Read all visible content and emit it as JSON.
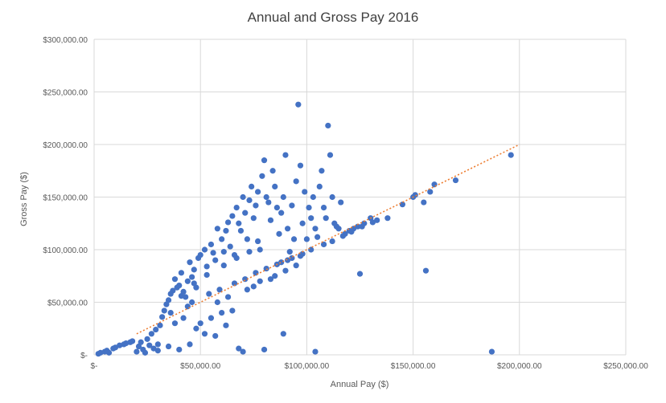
{
  "chart_data": {
    "type": "scatter",
    "title": "Annual and Gross Pay 2016",
    "xlabel": "Annual Pay ($)",
    "ylabel": "Gross Pay ($)",
    "xlim": [
      0,
      250000
    ],
    "ylim": [
      0,
      300000
    ],
    "x_ticks": [
      0,
      50000,
      100000,
      150000,
      200000,
      250000
    ],
    "x_tick_labels": [
      "$-",
      "$50,000.00",
      "$100,000.00",
      "$150,000.00",
      "$200,000.00",
      "$250,000.00"
    ],
    "y_ticks": [
      0,
      50000,
      100000,
      150000,
      200000,
      250000,
      300000
    ],
    "y_tick_labels": [
      "$-",
      "$50,000.00",
      "$100,000.00",
      "$150,000.00",
      "$200,000.00",
      "$250,000.00",
      "$300,000.00"
    ],
    "grid": true,
    "legend": "none",
    "point_color": "#4472C4",
    "trendline": {
      "type": "linear",
      "color": "#ED7D31",
      "style": "dotted",
      "x": [
        20000,
        200000
      ],
      "y": [
        20000,
        200000
      ]
    },
    "points": [
      [
        2000,
        1000
      ],
      [
        3000,
        2000
      ],
      [
        5000,
        3000
      ],
      [
        6000,
        4000
      ],
      [
        7000,
        2000
      ],
      [
        9000,
        6000
      ],
      [
        10000,
        7000
      ],
      [
        12000,
        9000
      ],
      [
        14000,
        10000
      ],
      [
        15000,
        11000
      ],
      [
        17000,
        12000
      ],
      [
        18000,
        13000
      ],
      [
        20000,
        3000
      ],
      [
        21000,
        8000
      ],
      [
        22000,
        12000
      ],
      [
        23000,
        5000
      ],
      [
        24000,
        2000
      ],
      [
        25000,
        15000
      ],
      [
        26000,
        9000
      ],
      [
        27000,
        20000
      ],
      [
        28000,
        6000
      ],
      [
        29000,
        24000
      ],
      [
        30000,
        10000
      ],
      [
        31000,
        28000
      ],
      [
        32000,
        36000
      ],
      [
        33000,
        42000
      ],
      [
        34000,
        48000
      ],
      [
        35000,
        52000
      ],
      [
        36000,
        58000
      ],
      [
        37000,
        61000
      ],
      [
        38000,
        72000
      ],
      [
        39000,
        64000
      ],
      [
        40000,
        66000
      ],
      [
        41000,
        78000
      ],
      [
        42000,
        60000
      ],
      [
        43000,
        55000
      ],
      [
        44000,
        70000
      ],
      [
        45000,
        88000
      ],
      [
        46000,
        74000
      ],
      [
        47000,
        81000
      ],
      [
        48000,
        64000
      ],
      [
        49000,
        92000
      ],
      [
        50000,
        95000
      ],
      [
        52000,
        100000
      ],
      [
        53000,
        84000
      ],
      [
        55000,
        105000
      ],
      [
        56000,
        97000
      ],
      [
        57000,
        90000
      ],
      [
        58000,
        120000
      ],
      [
        60000,
        110000
      ],
      [
        61000,
        98000
      ],
      [
        62000,
        118000
      ],
      [
        63000,
        126000
      ],
      [
        64000,
        103000
      ],
      [
        65000,
        132000
      ],
      [
        66000,
        95000
      ],
      [
        67000,
        140000
      ],
      [
        68000,
        125000
      ],
      [
        69000,
        118000
      ],
      [
        70000,
        150000
      ],
      [
        71000,
        135000
      ],
      [
        72000,
        110000
      ],
      [
        73000,
        147000
      ],
      [
        74000,
        160000
      ],
      [
        75000,
        130000
      ],
      [
        76000,
        142000
      ],
      [
        77000,
        155000
      ],
      [
        78000,
        100000
      ],
      [
        79000,
        170000
      ],
      [
        80000,
        185000
      ],
      [
        81000,
        150000
      ],
      [
        82000,
        145000
      ],
      [
        83000,
        128000
      ],
      [
        84000,
        175000
      ],
      [
        85000,
        160000
      ],
      [
        86000,
        140000
      ],
      [
        87000,
        115000
      ],
      [
        88000,
        135000
      ],
      [
        89000,
        150000
      ],
      [
        90000,
        190000
      ],
      [
        91000,
        120000
      ],
      [
        92000,
        98000
      ],
      [
        93000,
        142000
      ],
      [
        94000,
        110000
      ],
      [
        95000,
        165000
      ],
      [
        96000,
        238000
      ],
      [
        97000,
        180000
      ],
      [
        98000,
        125000
      ],
      [
        99000,
        155000
      ],
      [
        100000,
        110000
      ],
      [
        101000,
        140000
      ],
      [
        102000,
        130000
      ],
      [
        103000,
        150000
      ],
      [
        104000,
        120000
      ],
      [
        105000,
        112000
      ],
      [
        106000,
        160000
      ],
      [
        107000,
        175000
      ],
      [
        108000,
        140000
      ],
      [
        109000,
        130000
      ],
      [
        110000,
        218000
      ],
      [
        111000,
        190000
      ],
      [
        112000,
        150000
      ],
      [
        113000,
        125000
      ],
      [
        114000,
        122000
      ],
      [
        115000,
        120000
      ],
      [
        116000,
        145000
      ],
      [
        118000,
        115000
      ],
      [
        120000,
        118000
      ],
      [
        122000,
        120000
      ],
      [
        124000,
        122000
      ],
      [
        125000,
        77000
      ],
      [
        127000,
        125000
      ],
      [
        130000,
        130000
      ],
      [
        133000,
        128000
      ],
      [
        138000,
        130000
      ],
      [
        145000,
        143000
      ],
      [
        150000,
        150000
      ],
      [
        151000,
        152000
      ],
      [
        155000,
        145000
      ],
      [
        156000,
        80000
      ],
      [
        158000,
        155000
      ],
      [
        160000,
        162000
      ],
      [
        170000,
        166000
      ],
      [
        187000,
        3000
      ],
      [
        196000,
        190000
      ],
      [
        104000,
        3000
      ],
      [
        89000,
        20000
      ],
      [
        80000,
        5000
      ],
      [
        70000,
        3000
      ],
      [
        68000,
        6000
      ],
      [
        45000,
        10000
      ],
      [
        40000,
        5000
      ],
      [
        35000,
        8000
      ],
      [
        30000,
        4000
      ],
      [
        50000,
        30000
      ],
      [
        55000,
        35000
      ],
      [
        60000,
        40000
      ],
      [
        65000,
        42000
      ],
      [
        48000,
        25000
      ],
      [
        52000,
        20000
      ],
      [
        57000,
        18000
      ],
      [
        62000,
        28000
      ],
      [
        75000,
        65000
      ],
      [
        85000,
        75000
      ],
      [
        90000,
        80000
      ],
      [
        95000,
        85000
      ],
      [
        38000,
        30000
      ],
      [
        42000,
        35000
      ],
      [
        58000,
        50000
      ],
      [
        63000,
        55000
      ],
      [
        72000,
        62000
      ],
      [
        78000,
        70000
      ],
      [
        83000,
        72000
      ],
      [
        88000,
        88000
      ],
      [
        93000,
        92000
      ],
      [
        98000,
        96000
      ],
      [
        102000,
        100000
      ],
      [
        108000,
        105000
      ],
      [
        112000,
        108000
      ],
      [
        117000,
        113000
      ],
      [
        121000,
        117000
      ],
      [
        126000,
        122000
      ],
      [
        131000,
        126000
      ],
      [
        36000,
        40000
      ],
      [
        44000,
        46000
      ],
      [
        46000,
        50000
      ],
      [
        54000,
        58000
      ],
      [
        59000,
        62000
      ],
      [
        66000,
        68000
      ],
      [
        71000,
        72000
      ],
      [
        76000,
        78000
      ],
      [
        81000,
        82000
      ],
      [
        86000,
        86000
      ],
      [
        91000,
        90000
      ],
      [
        97000,
        94000
      ],
      [
        41000,
        56000
      ],
      [
        47000,
        68000
      ],
      [
        53000,
        76000
      ],
      [
        61000,
        85000
      ],
      [
        67000,
        92000
      ],
      [
        73000,
        98000
      ],
      [
        77000,
        108000
      ]
    ]
  }
}
